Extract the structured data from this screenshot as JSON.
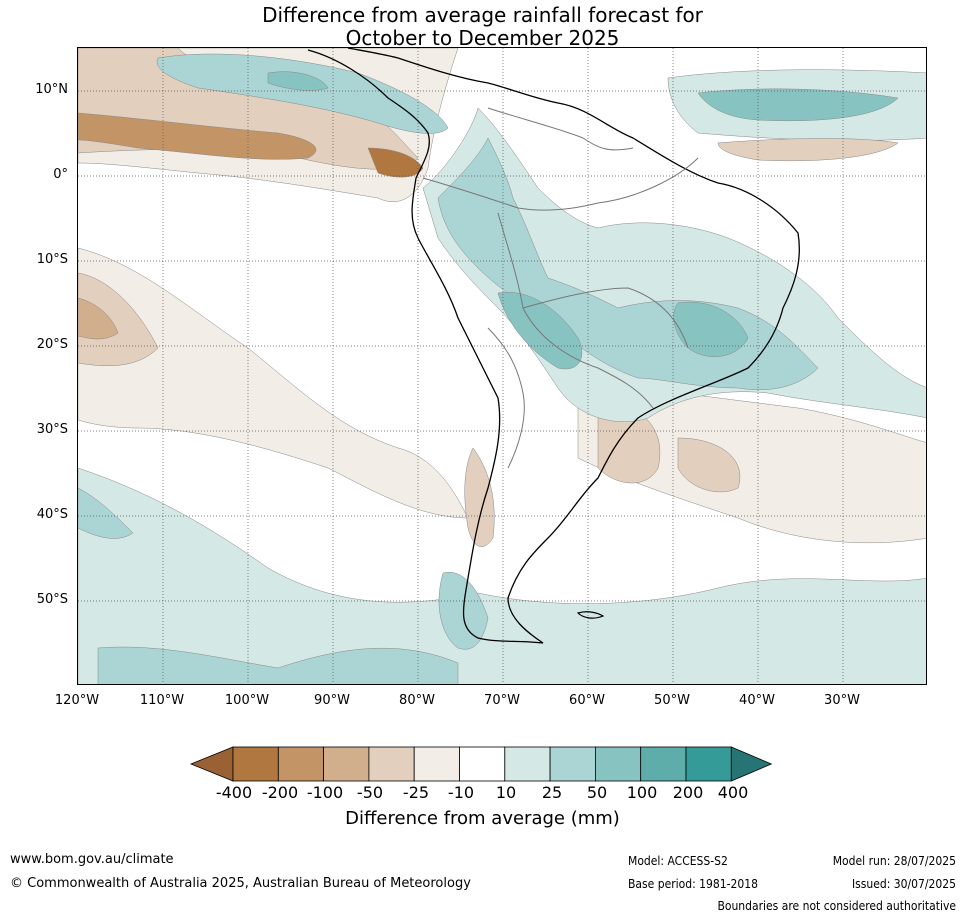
{
  "title": {
    "line1": "Difference from average rainfall forecast for",
    "line2": "October to December 2025"
  },
  "map": {
    "region": "South America",
    "lat_labels": [
      "10°N",
      "0°",
      "10°S",
      "20°S",
      "30°S",
      "40°S",
      "50°S"
    ],
    "lon_labels": [
      "120°W",
      "110°W",
      "100°W",
      "90°W",
      "80°W",
      "70°W",
      "60°W",
      "50°W",
      "40°W",
      "30°W"
    ]
  },
  "colorbar": {
    "ticks": [
      "-400",
      "-200",
      "-100",
      "-50",
      "-25",
      "-10",
      "10",
      "25",
      "50",
      "100",
      "200",
      "400"
    ],
    "colors": {
      "extend_low": "#9a6134",
      "lt_-400_-200": "#b07840",
      "lt_-200_-100": "#c29466",
      "lt_-100_-50": "#d1ae8c",
      "lt_-50_-25": "#e3cfbd",
      "lt_-25_-10": "#f2ede6",
      "lt_-10_10": "#ffffff",
      "lt_10_25": "#d4e8e6",
      "lt_25_50": "#aad5d4",
      "lt_50_100": "#87c3c1",
      "lt_100_200": "#5fadaa",
      "lt_200_400": "#349b98",
      "extend_high": "#267574"
    },
    "label": "Difference from average (mm)"
  },
  "footer": {
    "website": "www.bom.gov.au/climate",
    "copyright": "© Commonwealth of Australia 2025, Australian Bureau of Meteorology",
    "model": "Model: ACCESS-S2",
    "base_period": "Base period: 1981-2018",
    "model_run": "Model run: 28/07/2025",
    "issued": "Issued: 30/07/2025",
    "disclaimer": "Boundaries are not considered authoritative"
  }
}
